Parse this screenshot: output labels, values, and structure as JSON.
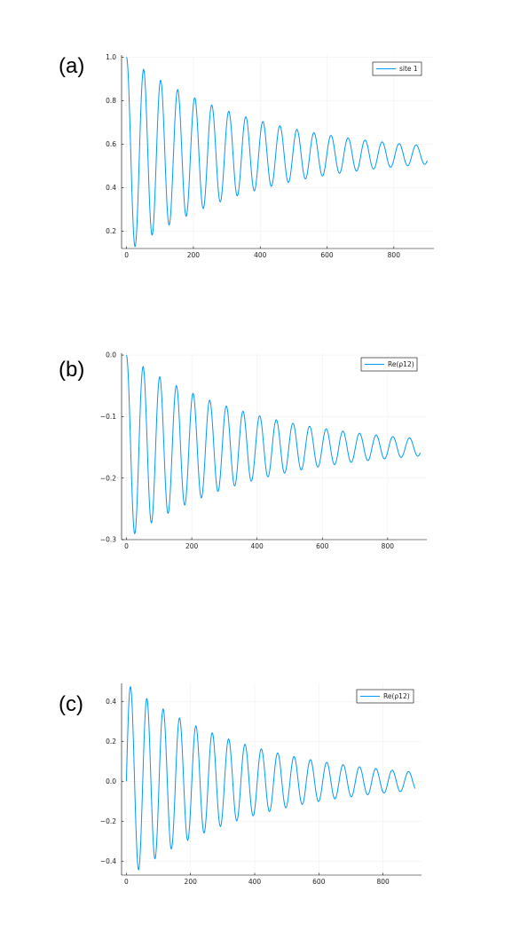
{
  "panel_labels": [
    "(a)",
    "(b)",
    "(c)"
  ],
  "colors": {
    "series": "#009AFA",
    "axis": "#000000",
    "grid": "#EEEEEE"
  },
  "chart_data": [
    {
      "type": "line",
      "panel": "(a)",
      "title": "",
      "xlabel": "",
      "ylabel": "",
      "xlim": [
        -15,
        920
      ],
      "ylim": [
        0.12,
        1.01
      ],
      "xticks": [
        0,
        200,
        400,
        600,
        800
      ],
      "yticks": [
        0.2,
        0.4,
        0.6,
        0.8,
        1.0
      ],
      "ytick_labels": [
        "0.2",
        "0.4",
        "0.6",
        "0.8",
        "1.0"
      ],
      "xtick_labels": [
        "0",
        "200",
        "400",
        "600",
        "800"
      ],
      "grid": true,
      "legend_position": "top-right",
      "series": [
        {
          "name": "site 1",
          "model": {
            "offset": 0.55,
            "amplitude": 0.45,
            "decay_time": 380,
            "period": 51,
            "phase": "cos",
            "x_start": 0,
            "x_end": 900
          }
        }
      ]
    },
    {
      "type": "line",
      "panel": "(b)",
      "title": "",
      "xlabel": "",
      "ylabel": "",
      "xlim": [
        -15,
        920
      ],
      "ylim": [
        -0.3,
        0.003
      ],
      "xticks": [
        0,
        200,
        400,
        600,
        800
      ],
      "yticks": [
        -0.3,
        -0.2,
        -0.1,
        0.0
      ],
      "ytick_labels": [
        "−0.3",
        "−0.2",
        "−0.1",
        "0.0"
      ],
      "xtick_labels": [
        "0",
        "200",
        "400",
        "600",
        "800"
      ],
      "grid": true,
      "legend_position": "top-right",
      "series": [
        {
          "name": "Re(ρ12)",
          "model": {
            "offset": -0.15,
            "amplitude": -0.15,
            "decay_time": 380,
            "period": 51,
            "phase": "1-cos",
            "x_start": 0,
            "x_end": 900
          }
        }
      ]
    },
    {
      "type": "line",
      "panel": "(c)",
      "title": "",
      "xlabel": "",
      "ylabel": "",
      "xlim": [
        -15,
        920
      ],
      "ylim": [
        -0.47,
        0.49
      ],
      "xticks": [
        0,
        200,
        400,
        600,
        800
      ],
      "yticks": [
        -0.4,
        -0.2,
        0.0,
        0.2,
        0.4
      ],
      "ytick_labels": [
        "−0.4",
        "−0.2",
        "0.0",
        "0.2",
        "0.4"
      ],
      "xtick_labels": [
        "0",
        "200",
        "400",
        "600",
        "800"
      ],
      "grid": true,
      "legend_position": "top-right",
      "series": [
        {
          "name": "Re(ρ12)",
          "model": {
            "offset": 0.0,
            "amplitude": 0.49,
            "decay_time": 380,
            "period": 51,
            "phase": "sin",
            "x_start": 0,
            "x_end": 900
          }
        }
      ]
    }
  ]
}
